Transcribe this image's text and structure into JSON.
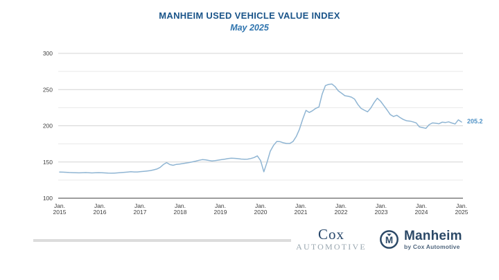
{
  "header": {
    "title": "MANHEIM USED VEHICLE VALUE INDEX",
    "subtitle": "May 2025"
  },
  "footer": {
    "cox_word": "Cox",
    "cox_sub": "AUTOMOTIVE",
    "manheim_monogram": "M",
    "manheim_name": "Manheim",
    "manheim_sub": "by Cox Automotive"
  },
  "colors": {
    "title_blue": "#1a5489",
    "subtitle_blue": "#2f74ae",
    "line_blue": "#8fb5d3",
    "end_label_blue": "#4f92c6",
    "major_grid": "#d4d4d4",
    "minor_grid": "#e9e9e9",
    "axis_line": "#7f7f7f",
    "tick_text": "#3f3f3f",
    "navy": "#2c4967"
  },
  "chart_data": {
    "type": "line",
    "title": "MANHEIM USED VEHICLE VALUE INDEX",
    "subtitle": "May 2025",
    "legend": "none",
    "grid": "horizontal",
    "ylim": [
      100,
      300
    ],
    "y_major_ticks": [
      100,
      150,
      200,
      250,
      300
    ],
    "y_minor_step": 25,
    "x_ticks": [
      {
        "line1": "Jan.",
        "line2": "2015"
      },
      {
        "line1": "Jan.",
        "line2": "2016"
      },
      {
        "line1": "Jan.",
        "line2": "2017"
      },
      {
        "line1": "Jan.",
        "line2": "2018"
      },
      {
        "line1": "Jan.",
        "line2": "2019"
      },
      {
        "line1": "Jan.",
        "line2": "2020"
      },
      {
        "line1": "Jan.",
        "line2": "2021"
      },
      {
        "line1": "Jan.",
        "line2": "2022"
      },
      {
        "line1": "Jan.",
        "line2": "2023"
      },
      {
        "line1": "Jan.",
        "line2": "2024"
      },
      {
        "line1": "Jan.",
        "line2": "2025"
      }
    ],
    "x_range_note": "monthly values, Jan 2015 through May 2025",
    "end_value_label": "205.2",
    "series": [
      {
        "name": "Manheim Used Vehicle Value Index",
        "values": [
          136.2,
          136.0,
          135.8,
          135.5,
          135.3,
          135.1,
          135.0,
          135.2,
          135.4,
          135.1,
          134.9,
          135.1,
          135.3,
          135.1,
          134.9,
          134.6,
          134.5,
          134.7,
          135.0,
          135.4,
          135.8,
          136.2,
          136.6,
          136.3,
          136.3,
          136.7,
          137.1,
          137.6,
          138.2,
          139.1,
          140.3,
          142.5,
          146.5,
          149.2,
          146.5,
          145.5,
          146.7,
          147.2,
          147.8,
          148.5,
          149.3,
          150.2,
          151.2,
          152.3,
          153.3,
          153.0,
          152.2,
          151.5,
          152.0,
          152.6,
          153.3,
          154.0,
          154.7,
          155.2,
          155.0,
          154.6,
          154.1,
          153.8,
          154.0,
          154.8,
          156.2,
          158.5,
          152.0,
          136.5,
          150.0,
          165.0,
          173.0,
          178.4,
          178.1,
          176.6,
          175.6,
          175.6,
          178.3,
          185.3,
          195.3,
          209.2,
          221.3,
          218.4,
          220.8,
          224.0,
          226.0,
          243.8,
          255.4,
          257.2,
          257.7,
          254.0,
          248.0,
          245.0,
          241.5,
          240.8,
          239.6,
          236.8,
          229.5,
          224.0,
          221.5,
          219.3,
          224.5,
          232.0,
          238.1,
          234.0,
          228.0,
          222.0,
          215.5,
          212.8,
          214.5,
          211.5,
          208.8,
          207.0,
          206.5,
          205.5,
          204.0,
          198.5,
          197.5,
          196.5,
          201.5,
          203.9,
          203.5,
          202.8,
          205.0,
          204.5,
          205.5,
          203.8,
          202.5,
          208.2,
          205.2
        ]
      }
    ]
  }
}
